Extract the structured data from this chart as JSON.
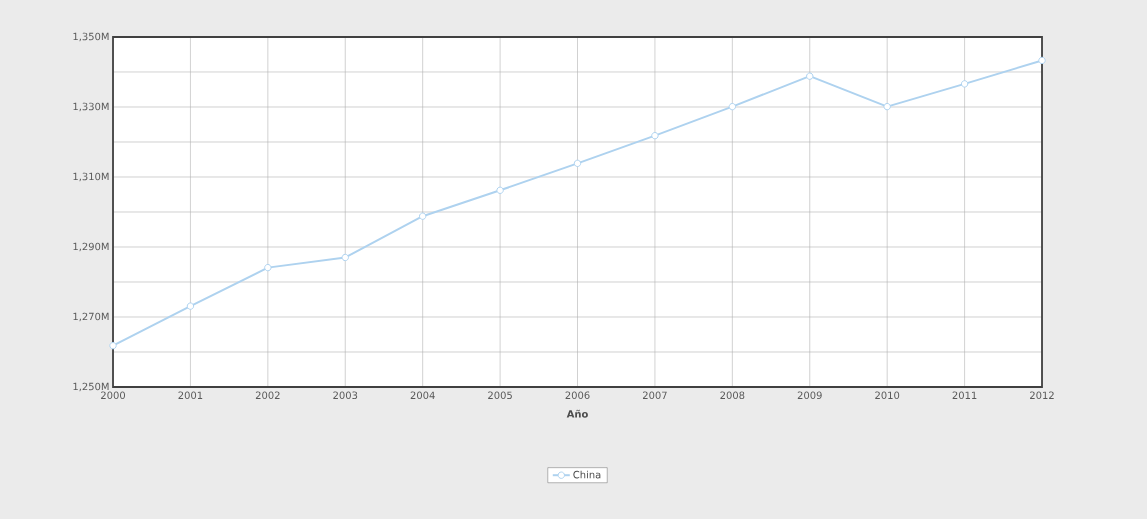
{
  "chart_data": {
    "type": "line",
    "xlabel": "Año",
    "categories": [
      "2000",
      "2001",
      "2002",
      "2003",
      "2004",
      "2005",
      "2006",
      "2007",
      "2008",
      "2009",
      "2010",
      "2011",
      "2012"
    ],
    "series": [
      {
        "name": "China",
        "color": "#aed2ef",
        "values": [
          1261.8,
          1273.1,
          1284.1,
          1287.0,
          1298.8,
          1306.2,
          1313.9,
          1321.8,
          1330.1,
          1338.8,
          1330.1,
          1336.6,
          1343.3
        ]
      }
    ],
    "ylim": [
      1250,
      1350
    ],
    "yticks": [
      {
        "value": 1250,
        "label": "1,250M"
      },
      {
        "value": 1260,
        "label": null
      },
      {
        "value": 1270,
        "label": "1,270M"
      },
      {
        "value": 1280,
        "label": null
      },
      {
        "value": 1290,
        "label": "1,290M"
      },
      {
        "value": 1300,
        "label": null
      },
      {
        "value": 1310,
        "label": "1,310M"
      },
      {
        "value": 1320,
        "label": null
      },
      {
        "value": 1330,
        "label": "1,330M"
      },
      {
        "value": 1340,
        "label": null
      },
      {
        "value": 1350,
        "label": "1,350M"
      }
    ],
    "grid": true,
    "legend": "bottom",
    "marker": "circle",
    "line_style": "solid"
  }
}
